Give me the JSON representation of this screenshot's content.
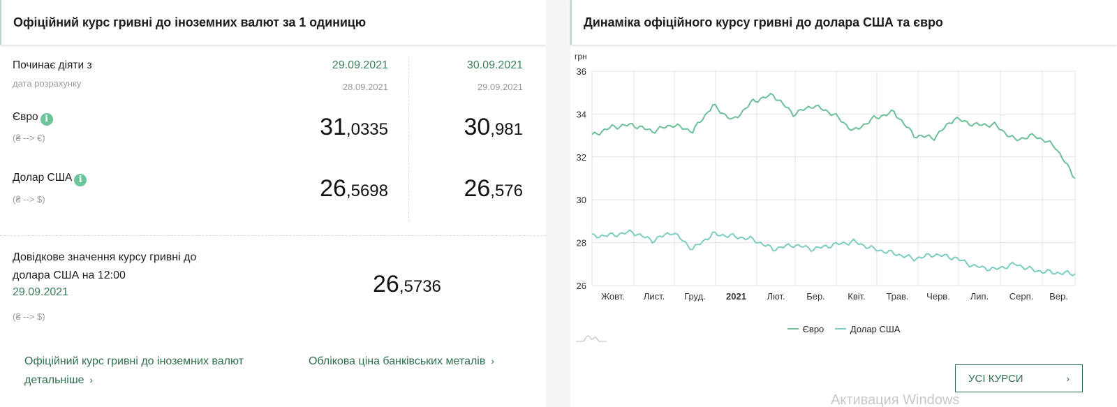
{
  "left_panel": {
    "title": "Офіційний курс гривні до іноземних валют за 1 одиницю",
    "starts_label": "Починає діяти з",
    "calc_date_label": "дата розрахунку",
    "columns": [
      {
        "effective_date": "29.09.2021",
        "calc_date": "28.09.2021"
      },
      {
        "effective_date": "30.09.2021",
        "calc_date": "29.09.2021"
      }
    ],
    "currencies": [
      {
        "name": "Євро",
        "direction": "(₴ --> €)",
        "info_icon": "info-icon",
        "values": [
          {
            "int": "31",
            "frac": ",0335"
          },
          {
            "int": "30",
            "frac": ",981"
          }
        ]
      },
      {
        "name": "Долар США",
        "direction": "(₴ --> $)",
        "info_icon": "info-icon",
        "values": [
          {
            "int": "26",
            "frac": ",5698"
          },
          {
            "int": "26",
            "frac": ",576"
          }
        ]
      }
    ],
    "reference": {
      "label": "Довідкове значення курсу гривні до долара США на 12:00",
      "date": "29.09.2021",
      "direction": "(₴ --> $)",
      "value": {
        "int": "26",
        "frac": ",5736"
      }
    },
    "links": [
      {
        "label": "Офіційний курс гривні до іноземних валют детальніше",
        "icon": "chevron-right-icon",
        "glyph": "›"
      },
      {
        "label": "Облікова ціна банківських металів",
        "icon": "chevron-right-icon",
        "glyph": "›"
      }
    ]
  },
  "right_panel": {
    "title": "Динаміка офіційного курсу гривні до долара США та євро",
    "all_rates_button": {
      "label": "УСІ КУРСИ",
      "glyph": "›"
    },
    "watermark": "Активация Windows"
  },
  "colors": {
    "accent_green": "#2f6e4c",
    "date_green": "#3b7e5a",
    "info_icon": "#6bc49a",
    "euro_line": "#6dbf98",
    "usd_line": "#7ccdc0"
  },
  "chart_data": {
    "type": "line",
    "title": "Динаміка офіційного курсу гривні до долара США та євро",
    "ylabel": "грн",
    "xlabel": "",
    "ylim": [
      26,
      36
    ],
    "yticks": [
      26,
      28,
      30,
      32,
      34,
      36
    ],
    "grid": true,
    "legend_position": "bottom",
    "categories": [
      "Жовт.",
      "Лист.",
      "Груд.",
      "2021",
      "Лют.",
      "Бер.",
      "Квіт.",
      "Трав.",
      "Черв.",
      "Лип.",
      "Серп.",
      "Вер."
    ],
    "x": [
      "2020-09-29",
      "2020-10-15",
      "2020-11-01",
      "2020-11-15",
      "2020-12-01",
      "2020-12-15",
      "2021-01-01",
      "2021-01-15",
      "2021-02-01",
      "2021-02-15",
      "2021-03-01",
      "2021-03-15",
      "2021-04-01",
      "2021-04-15",
      "2021-05-01",
      "2021-05-15",
      "2021-06-01",
      "2021-06-15",
      "2021-07-01",
      "2021-07-15",
      "2021-08-01",
      "2021-08-15",
      "2021-09-01",
      "2021-09-15",
      "2021-09-29"
    ],
    "series": [
      {
        "name": "Євро",
        "color": "#6dbf98",
        "values": [
          33.0,
          33.4,
          33.5,
          33.2,
          33.5,
          33.2,
          34.4,
          33.7,
          34.6,
          34.9,
          34.0,
          34.4,
          34.0,
          33.2,
          33.8,
          34.1,
          33.0,
          32.9,
          33.8,
          33.5,
          33.5,
          32.8,
          33.0,
          32.5,
          31.0
        ]
      },
      {
        "name": "Долар США",
        "color": "#7ccdc0",
        "values": [
          28.3,
          28.35,
          28.5,
          28.1,
          28.5,
          27.7,
          28.4,
          28.3,
          28.15,
          27.7,
          27.9,
          27.7,
          27.9,
          28.05,
          27.7,
          27.5,
          27.25,
          27.45,
          27.3,
          26.9,
          26.75,
          27.0,
          26.7,
          26.6,
          26.55
        ]
      }
    ]
  }
}
